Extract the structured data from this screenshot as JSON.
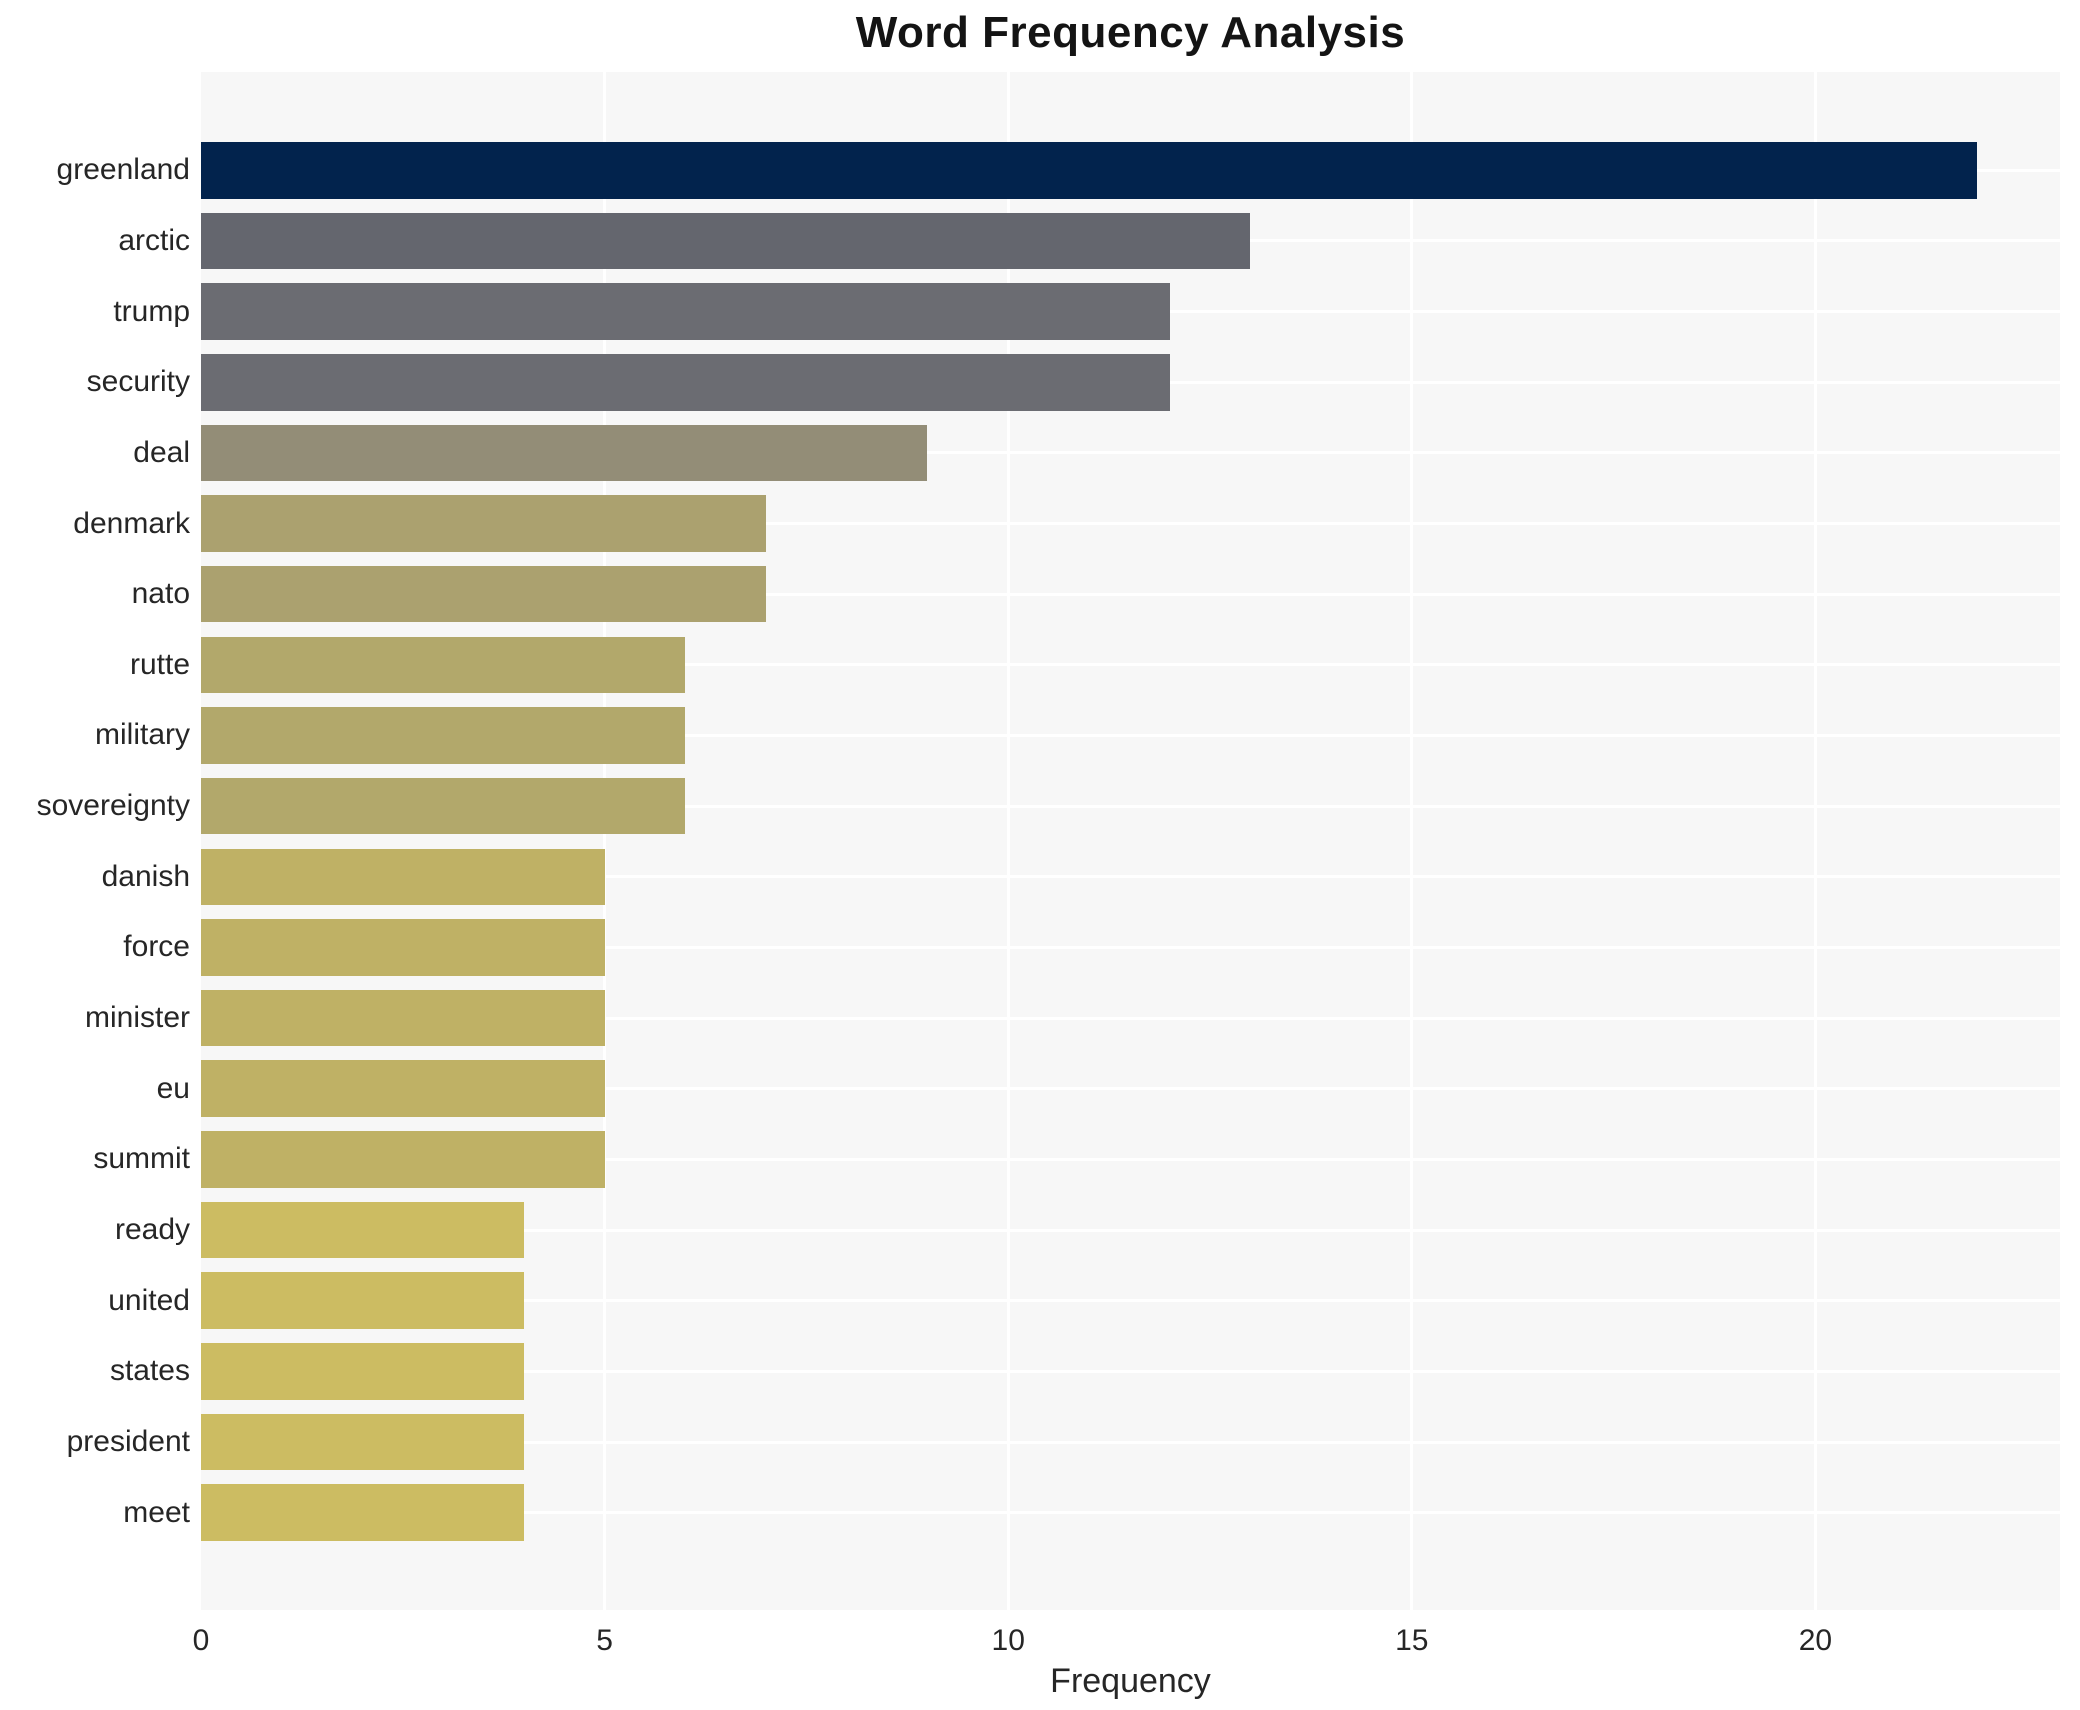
{
  "chart_data": {
    "type": "bar",
    "orientation": "horizontal",
    "title": "Word Frequency Analysis",
    "xlabel": "Frequency",
    "categories": [
      "greenland",
      "arctic",
      "trump",
      "security",
      "deal",
      "denmark",
      "nato",
      "rutte",
      "military",
      "sovereignty",
      "danish",
      "force",
      "minister",
      "eu",
      "summit",
      "ready",
      "united",
      "states",
      "president",
      "meet"
    ],
    "values": [
      22,
      13,
      12,
      12,
      9,
      7,
      7,
      6,
      6,
      6,
      5,
      5,
      5,
      5,
      5,
      4,
      4,
      4,
      4,
      4
    ],
    "bar_colors": [
      "#02234d",
      "#64666e",
      "#6b6c72",
      "#6b6c72",
      "#938d77",
      "#aba16f",
      "#aba16f",
      "#b2a86b",
      "#b2a86b",
      "#b2a86b",
      "#bfb165",
      "#bfb165",
      "#bfb165",
      "#bfb165",
      "#bfb165",
      "#ccbc62",
      "#ccbc62",
      "#ccbc62",
      "#ccbc62",
      "#ccbc62"
    ],
    "xticks": [
      0,
      5,
      10,
      15,
      20
    ],
    "xlim": [
      0,
      23.03
    ],
    "grid": true,
    "legend": "none",
    "plot_bg_color": "#f7f7f7",
    "grid_color": "#ffffff",
    "text_color": "#262626",
    "title_color": "#141414"
  }
}
